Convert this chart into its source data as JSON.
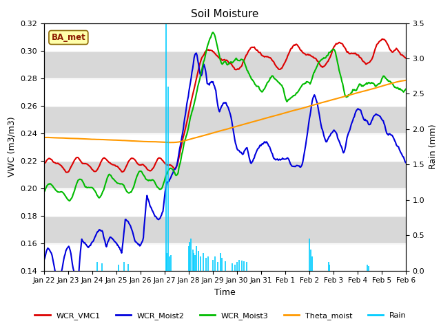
{
  "title": "Soil Moisture",
  "xlabel": "Time",
  "ylabel_left": "VWC (m3/m3)",
  "ylabel_right": "Rain (mm)",
  "ylim_left": [
    0.14,
    0.32
  ],
  "ylim_right": [
    0.0,
    3.5
  ],
  "background_color": "#ffffff",
  "plot_bg_color": "#e0e0e0",
  "legend_label": "BA_met",
  "series_colors": {
    "WCR_VMC1": "#dd0000",
    "WCR_Moist2": "#0000dd",
    "WCR_Moist3": "#00bb00",
    "Theta_moist": "#ff9900",
    "Rain": "#00ccff"
  },
  "x_tick_labels": [
    "Jan 22",
    "Jan 23",
    "Jan 24",
    "Jan 25",
    "Jan 26",
    "Jan 27",
    "Jan 28",
    "Jan 29",
    "Jan 30",
    "Jan 31",
    "Feb 1",
    "Feb 2",
    "Feb 3",
    "Feb 4",
    "Feb 5",
    "Feb 6"
  ],
  "yticks_left": [
    0.14,
    0.16,
    0.18,
    0.2,
    0.22,
    0.24,
    0.26,
    0.28,
    0.3,
    0.32
  ],
  "yticks_right": [
    0.0,
    0.5,
    1.0,
    1.5,
    2.0,
    2.5,
    3.0,
    3.5
  ],
  "band_colors": [
    "#ffffff",
    "#d8d8d8"
  ],
  "n_points": 500
}
